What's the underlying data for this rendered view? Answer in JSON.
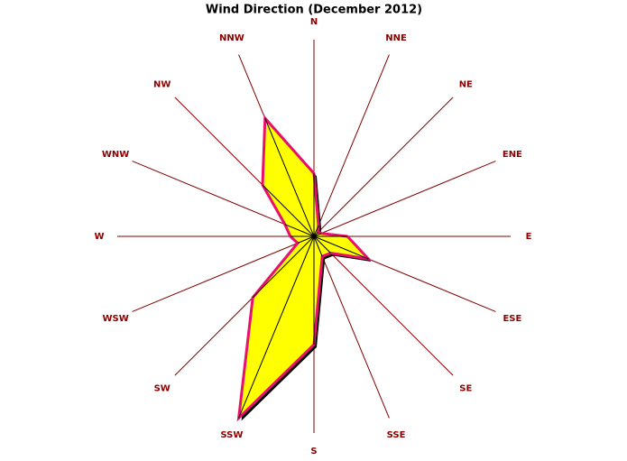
{
  "chart_data": {
    "type": "radar",
    "title": "Wind Direction (December 2012)",
    "categories": [
      "N",
      "NNE",
      "NE",
      "ENE",
      "E",
      "ESE",
      "SE",
      "SSE",
      "S",
      "SSW",
      "SW",
      "WSW",
      "W",
      "WNW",
      "NW",
      "NNW"
    ],
    "values": [
      32,
      6,
      3,
      4,
      17,
      30,
      12,
      11,
      55,
      100,
      44,
      9,
      12,
      16,
      37,
      65
    ],
    "rlim": [
      0,
      100
    ],
    "color": "#ffff00",
    "line_color": "#e8106e",
    "axis_color": "#800000"
  }
}
